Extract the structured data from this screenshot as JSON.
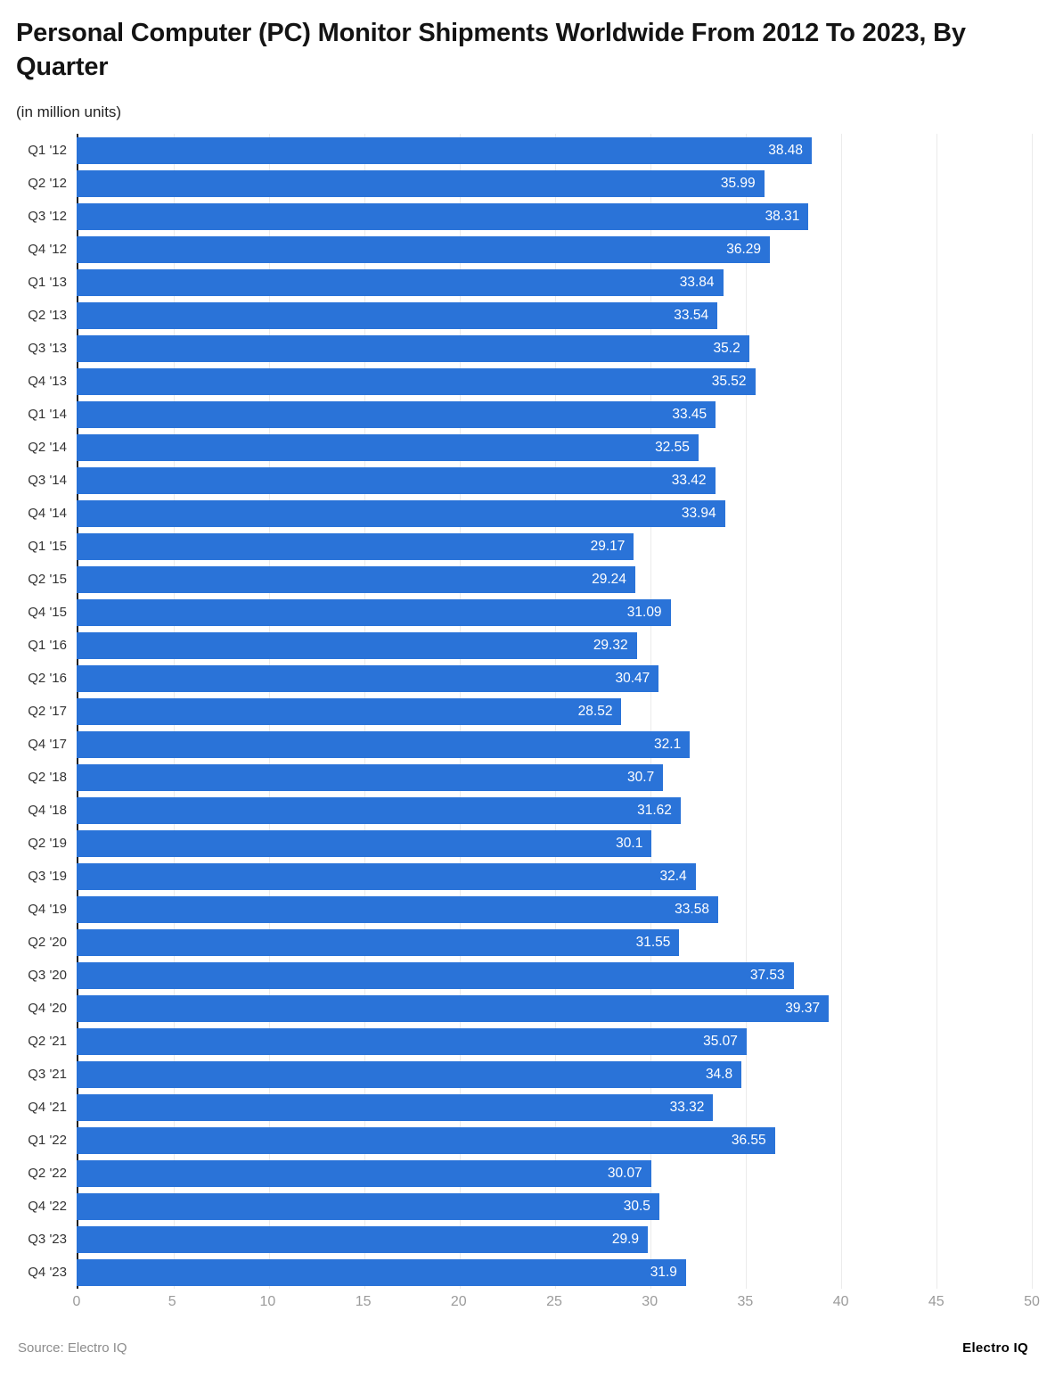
{
  "header": {
    "title": "Personal Computer (PC) Monitor Shipments Worldwide From 2012 To 2023, By Quarter",
    "subtitle": "(in million units)"
  },
  "footer": {
    "source": "Source: Electro IQ",
    "brand": "Electro IQ"
  },
  "colors": {
    "bar": "#2a73d8",
    "value_label": "#ffffff",
    "grid": "#ebebeb",
    "axis_line": "#1f1f1f",
    "tick_label": "#9b9b9b"
  },
  "chart_data": {
    "type": "bar",
    "orientation": "horizontal",
    "title": "Personal Computer (PC) Monitor Shipments Worldwide From 2012 To 2023, By Quarter",
    "subtitle": "(in million units)",
    "xlabel": "",
    "ylabel": "",
    "xlim": [
      0,
      50
    ],
    "xticks": [
      0,
      5,
      10,
      15,
      20,
      25,
      30,
      35,
      40,
      45,
      50
    ],
    "grid": true,
    "value_labels_position": "inside-end",
    "categories": [
      "Q1 '12",
      "Q2 '12",
      "Q3 '12",
      "Q4 '12",
      "Q1 '13",
      "Q2 '13",
      "Q3 '13",
      "Q4 '13",
      "Q1 '14",
      "Q2 '14",
      "Q3 '14",
      "Q4 '14",
      "Q1 '15",
      "Q2 '15",
      "Q4 '15",
      "Q1 '16",
      "Q2 '16",
      "Q2 '17",
      "Q4 '17",
      "Q2 '18",
      "Q4 '18",
      "Q2 '19",
      "Q3 '19",
      "Q4 '19",
      "Q2 '20",
      "Q3 '20",
      "Q4 '20",
      "Q2 '21",
      "Q3 '21",
      "Q4 '21",
      "Q1 '22",
      "Q2 '22",
      "Q4 '22",
      "Q3 '23",
      "Q4 '23"
    ],
    "values": [
      38.48,
      35.99,
      38.31,
      36.29,
      33.84,
      33.54,
      35.2,
      35.52,
      33.45,
      32.55,
      33.42,
      33.94,
      29.17,
      29.24,
      31.09,
      29.32,
      30.47,
      28.52,
      32.1,
      30.7,
      31.62,
      30.1,
      32.4,
      33.58,
      31.55,
      37.53,
      39.37,
      35.07,
      34.8,
      33.32,
      36.55,
      30.07,
      30.5,
      29.9,
      31.9
    ]
  }
}
